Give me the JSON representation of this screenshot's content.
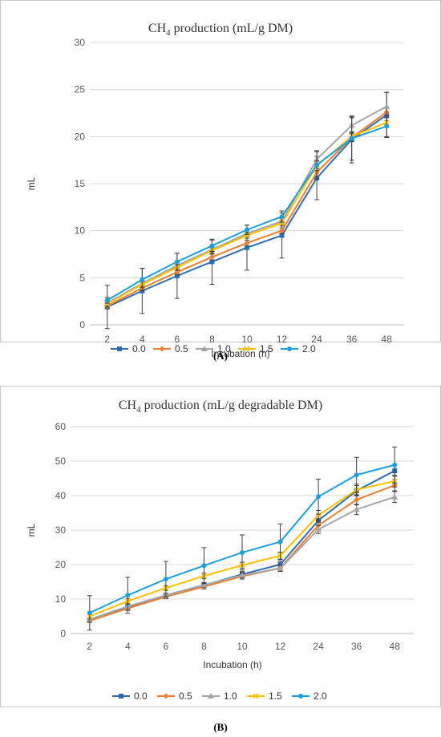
{
  "chart_data": [
    {
      "type": "line",
      "title_main": "CH",
      "title_sub": "4",
      "title_rest": " production (mL/g DM)",
      "ylabel": "mL",
      "xlabel": "Incubation (h)",
      "panel_label": "(A)",
      "panel_letter": "A",
      "categories": [
        "2",
        "4",
        "6",
        "8",
        "10",
        "12",
        "24",
        "36",
        "48"
      ],
      "ylim": [
        0,
        30
      ],
      "yticks": [
        0,
        5,
        10,
        15,
        20,
        25,
        30
      ],
      "grid": true,
      "legend_position": "bottom",
      "series": [
        {
          "name": "0.0",
          "color": "#2E6DB4",
          "marker": "square",
          "values": [
            1.9,
            3.6,
            5.2,
            6.7,
            8.2,
            9.5,
            15.6,
            19.7,
            22.3
          ],
          "errors": [
            2.3,
            2.4,
            2.4,
            2.4,
            2.4,
            2.4,
            2.3,
            2.5,
            2.4
          ]
        },
        {
          "name": "0.5",
          "color": "#ED7D31",
          "marker": "diamond",
          "values": [
            2.0,
            3.9,
            5.6,
            7.2,
            8.7,
            10.0,
            16.2,
            19.9,
            22.6
          ],
          "errors": [
            0.3,
            0.3,
            0.3,
            0.3,
            0.3,
            0.3,
            0.4,
            0.4,
            0.4
          ]
        },
        {
          "name": "1.0",
          "color": "#A5A5A5",
          "marker": "triangle",
          "values": [
            2.3,
            4.4,
            6.3,
            8.0,
            9.7,
            11.0,
            17.6,
            21.2,
            23.2
          ],
          "errors": [
            0.3,
            0.3,
            0.3,
            0.3,
            0.3,
            0.3,
            0.8,
            0.8,
            1.5
          ]
        },
        {
          "name": "1.5",
          "color": "#FFC000",
          "marker": "cross",
          "values": [
            2.2,
            4.3,
            6.1,
            7.9,
            9.5,
            10.8,
            16.9,
            20.0,
            21.5
          ],
          "errors": [
            0.3,
            0.3,
            0.3,
            0.3,
            0.3,
            0.3,
            0.5,
            0.5,
            0.5
          ]
        },
        {
          "name": "2.0",
          "color": "#1CA0DB",
          "marker": "circle",
          "values": [
            2.6,
            4.8,
            6.7,
            8.4,
            10.1,
            11.5,
            17.0,
            19.8,
            21.1
          ],
          "errors": [
            0.3,
            1.2,
            0.9,
            0.6,
            0.5,
            0.6,
            1.5,
            2.3,
            1.1
          ]
        }
      ]
    },
    {
      "type": "line",
      "title_main": "CH",
      "title_sub": "4",
      "title_rest": " production (mL/g degradable DM)",
      "ylabel": "mL",
      "xlabel": "Incubation (h)",
      "panel_label": "(B)",
      "panel_letter": "B",
      "categories": [
        "2",
        "4",
        "6",
        "8",
        "10",
        "12",
        "24",
        "36",
        "48"
      ],
      "ylim": [
        0,
        60
      ],
      "yticks": [
        0,
        10,
        20,
        30,
        40,
        50,
        60
      ],
      "grid": true,
      "legend_position": "bottom",
      "series": [
        {
          "name": "0.0",
          "color": "#2E6DB4",
          "marker": "square",
          "values": [
            3.9,
            7.5,
            10.8,
            14.0,
            17.2,
            20.0,
            32.8,
            41.4,
            47.2
          ],
          "errors": [
            0.5,
            0.6,
            0.6,
            0.7,
            0.8,
            0.9,
            1.2,
            1.5,
            1.6
          ]
        },
        {
          "name": "0.5",
          "color": "#ED7D31",
          "marker": "diamond",
          "values": [
            3.7,
            7.3,
            10.7,
            13.6,
            16.6,
            19.0,
            31.4,
            38.8,
            43.0
          ],
          "errors": [
            0.5,
            0.6,
            0.6,
            0.7,
            0.8,
            0.9,
            1.2,
            1.5,
            1.6
          ]
        },
        {
          "name": "1.0",
          "color": "#A5A5A5",
          "marker": "triangle",
          "values": [
            4.1,
            7.9,
            11.1,
            14.1,
            16.9,
            18.9,
            30.2,
            36.0,
            39.6
          ],
          "errors": [
            0.5,
            0.6,
            0.6,
            0.7,
            0.8,
            0.9,
            1.2,
            1.5,
            1.6
          ]
        },
        {
          "name": "1.5",
          "color": "#FFC000",
          "marker": "cross",
          "values": [
            5.0,
            9.4,
            13.2,
            16.7,
            19.8,
            22.6,
            34.3,
            41.7,
            44.2
          ],
          "errors": [
            0.6,
            0.7,
            0.7,
            0.8,
            0.9,
            1.0,
            1.4,
            1.6,
            1.7
          ]
        },
        {
          "name": "2.0",
          "color": "#1CA0DB",
          "marker": "circle",
          "values": [
            6.0,
            11.1,
            15.8,
            19.7,
            23.5,
            26.6,
            39.7,
            46.0,
            48.9
          ],
          "errors": [
            5.0,
            5.2,
            5.1,
            5.2,
            5.1,
            5.2,
            5.1,
            5.1,
            5.2
          ]
        }
      ]
    }
  ]
}
